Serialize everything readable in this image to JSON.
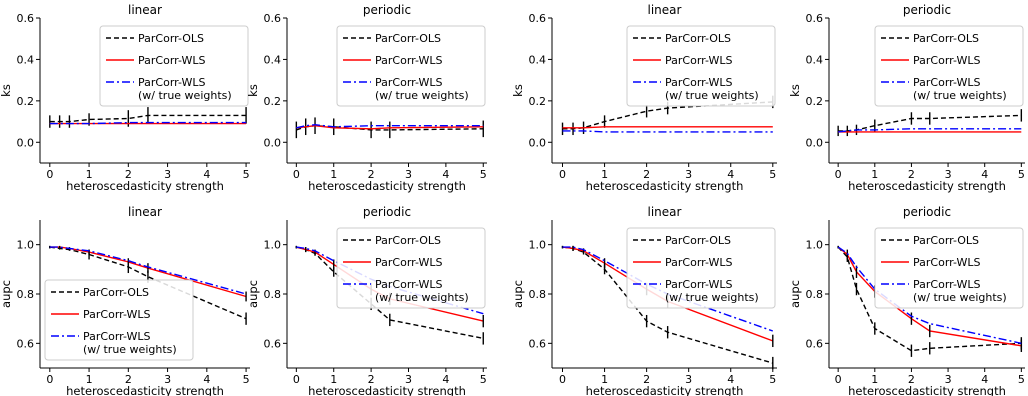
{
  "figure": {
    "series_styles": [
      {
        "name": "ParCorr-OLS",
        "line1": "ParCorr-OLS",
        "line2": "",
        "color": "#000000",
        "dash": "dashed"
      },
      {
        "name": "ParCorr-WLS",
        "line1": "ParCorr-WLS",
        "line2": "",
        "color": "#ff0000",
        "dash": "solid"
      },
      {
        "name": "ParCorr-WLS (w/ true weights)",
        "line1": "ParCorr-WLS",
        "line2": "(w/ true weights)",
        "color": "#0000ff",
        "dash": "dashdot"
      }
    ]
  },
  "chart_data": [
    {
      "type": "line",
      "title": "linear",
      "xlabel": "heteroscedasticity strength",
      "ylabel": "ks",
      "x": [
        0,
        0.25,
        0.5,
        1,
        2,
        2.5,
        5
      ],
      "xlim": [
        -0.25,
        5.1
      ],
      "ylim": [
        -0.1,
        0.6
      ],
      "xticks": [
        "0",
        "1",
        "2",
        "3",
        "4",
        "5"
      ],
      "yticks": [
        "0.0",
        "0.2",
        "0.4",
        "0.6"
      ],
      "legend": "top-right",
      "series": [
        {
          "name": "ParCorr-OLS",
          "values": [
            0.1,
            0.1,
            0.1,
            0.11,
            0.115,
            0.13,
            0.13
          ],
          "err": [
            0.03,
            0.03,
            0.03,
            0.03,
            0.04,
            0.04,
            0.04
          ]
        },
        {
          "name": "ParCorr-WLS",
          "values": [
            0.09,
            0.09,
            0.09,
            0.09,
            0.09,
            0.09,
            0.09
          ]
        },
        {
          "name": "ParCorr-WLS (w/ true weights)",
          "values": [
            0.09,
            0.09,
            0.09,
            0.09,
            0.095,
            0.095,
            0.095
          ]
        }
      ]
    },
    {
      "type": "line",
      "title": "periodic",
      "xlabel": "heteroscedasticity strength",
      "ylabel": "ks",
      "x": [
        0,
        0.25,
        0.5,
        1,
        2,
        2.5,
        5
      ],
      "xlim": [
        -0.25,
        5.1
      ],
      "ylim": [
        -0.1,
        0.6
      ],
      "xticks": [
        "0",
        "1",
        "2",
        "3",
        "4",
        "5"
      ],
      "yticks": [
        "0.0",
        "0.2",
        "0.4",
        "0.6"
      ],
      "legend": "top-right",
      "series": [
        {
          "name": "ParCorr-OLS",
          "values": [
            0.06,
            0.075,
            0.08,
            0.075,
            0.06,
            0.06,
            0.065
          ],
          "err": [
            0.04,
            0.04,
            0.04,
            0.04,
            0.04,
            0.04,
            0.04
          ]
        },
        {
          "name": "ParCorr-WLS",
          "values": [
            0.07,
            0.075,
            0.08,
            0.07,
            0.065,
            0.07,
            0.075
          ]
        },
        {
          "name": "ParCorr-WLS (w/ true weights)",
          "values": [
            0.07,
            0.08,
            0.085,
            0.075,
            0.08,
            0.08,
            0.08
          ]
        }
      ]
    },
    {
      "type": "line",
      "title": "linear",
      "xlabel": "heteroscedasticity strength",
      "ylabel": "ks",
      "x": [
        0,
        0.25,
        0.5,
        1,
        2,
        2.5,
        5
      ],
      "xlim": [
        -0.25,
        5.1
      ],
      "ylim": [
        -0.1,
        0.6
      ],
      "xticks": [
        "0",
        "1",
        "2",
        "3",
        "4",
        "5"
      ],
      "yticks": [
        "0.0",
        "0.2",
        "0.4",
        "0.6"
      ],
      "legend": "top-right",
      "series": [
        {
          "name": "ParCorr-OLS",
          "values": [
            0.065,
            0.065,
            0.07,
            0.1,
            0.15,
            0.165,
            0.195
          ],
          "err": [
            0.03,
            0.03,
            0.03,
            0.03,
            0.03,
            0.03,
            0.03
          ]
        },
        {
          "name": "ParCorr-WLS",
          "values": [
            0.07,
            0.07,
            0.07,
            0.075,
            0.075,
            0.075,
            0.075
          ]
        },
        {
          "name": "ParCorr-WLS (w/ true weights)",
          "values": [
            0.055,
            0.055,
            0.055,
            0.05,
            0.05,
            0.05,
            0.05
          ]
        }
      ]
    },
    {
      "type": "line",
      "title": "periodic",
      "xlabel": "heteroscedasticity strength",
      "ylabel": "ks",
      "x": [
        0,
        0.25,
        0.5,
        1,
        2,
        2.5,
        5
      ],
      "xlim": [
        -0.25,
        5.1
      ],
      "ylim": [
        -0.1,
        0.6
      ],
      "xticks": [
        "0",
        "1",
        "2",
        "3",
        "4",
        "5"
      ],
      "yticks": [
        "0.0",
        "0.2",
        "0.4",
        "0.6"
      ],
      "legend": "top-right",
      "series": [
        {
          "name": "ParCorr-OLS",
          "values": [
            0.055,
            0.055,
            0.06,
            0.08,
            0.115,
            0.115,
            0.13
          ],
          "err": [
            0.025,
            0.025,
            0.025,
            0.03,
            0.03,
            0.03,
            0.03
          ]
        },
        {
          "name": "ParCorr-WLS",
          "values": [
            0.05,
            0.05,
            0.05,
            0.05,
            0.05,
            0.05,
            0.05
          ]
        },
        {
          "name": "ParCorr-WLS (w/ true weights)",
          "values": [
            0.05,
            0.055,
            0.06,
            0.06,
            0.065,
            0.065,
            0.065
          ]
        }
      ]
    },
    {
      "type": "line",
      "title": "linear",
      "xlabel": "heteroscedasticity strength",
      "ylabel": "aupc",
      "x": [
        0,
        0.25,
        0.5,
        1,
        2,
        2.5,
        5
      ],
      "xlim": [
        -0.25,
        5.1
      ],
      "ylim": [
        0.5,
        1.1
      ],
      "xticks": [
        "0",
        "1",
        "2",
        "3",
        "4",
        "5"
      ],
      "yticks": [
        "0.6",
        "0.8",
        "1.0"
      ],
      "legend": "lower-left",
      "series": [
        {
          "name": "ParCorr-OLS",
          "values": [
            0.99,
            0.985,
            0.98,
            0.96,
            0.91,
            0.87,
            0.7
          ],
          "err": [
            0.005,
            0.005,
            0.005,
            0.02,
            0.025,
            0.025,
            0.025
          ]
        },
        {
          "name": "ParCorr-WLS",
          "values": [
            0.99,
            0.99,
            0.985,
            0.97,
            0.93,
            0.905,
            0.79
          ],
          "err": [
            0.005,
            0.005,
            0.005,
            0.01,
            0.015,
            0.02,
            0.02
          ]
        },
        {
          "name": "ParCorr-WLS (w/ true weights)",
          "values": [
            0.99,
            0.99,
            0.985,
            0.975,
            0.935,
            0.91,
            0.8
          ]
        }
      ]
    },
    {
      "type": "line",
      "title": "periodic",
      "xlabel": "heteroscedasticity strength",
      "ylabel": "aupc",
      "x": [
        0,
        0.25,
        0.5,
        1,
        2,
        2.5,
        5
      ],
      "xlim": [
        -0.25,
        5.1
      ],
      "ylim": [
        0.5,
        1.1
      ],
      "xticks": [
        "0",
        "1",
        "2",
        "3",
        "4",
        "5"
      ],
      "yticks": [
        "0.6",
        "0.8",
        "1.0"
      ],
      "legend": "top-right",
      "series": [
        {
          "name": "ParCorr-OLS",
          "values": [
            0.99,
            0.98,
            0.965,
            0.89,
            0.76,
            0.695,
            0.62
          ],
          "err": [
            0.005,
            0.01,
            0.01,
            0.02,
            0.025,
            0.025,
            0.025
          ]
        },
        {
          "name": "ParCorr-WLS",
          "values": [
            0.99,
            0.98,
            0.97,
            0.92,
            0.82,
            0.78,
            0.69
          ],
          "err": [
            0.005,
            0.01,
            0.01,
            0.02,
            0.025,
            0.025,
            0.025
          ]
        },
        {
          "name": "ParCorr-WLS (w/ true weights)",
          "values": [
            0.99,
            0.985,
            0.975,
            0.935,
            0.86,
            0.83,
            0.72
          ]
        }
      ]
    },
    {
      "type": "line",
      "title": "linear",
      "xlabel": "heteroscedasticity strength",
      "ylabel": "aupc",
      "x": [
        0,
        0.25,
        0.5,
        1,
        2,
        2.5,
        5
      ],
      "xlim": [
        -0.25,
        5.1
      ],
      "ylim": [
        0.5,
        1.1
      ],
      "xticks": [
        "0",
        "1",
        "2",
        "3",
        "4",
        "5"
      ],
      "yticks": [
        "0.6",
        "0.8",
        "1.0"
      ],
      "legend": "top-right",
      "series": [
        {
          "name": "ParCorr-OLS",
          "values": [
            0.99,
            0.985,
            0.97,
            0.9,
            0.69,
            0.645,
            0.52
          ],
          "err": [
            0.005,
            0.01,
            0.01,
            0.02,
            0.025,
            0.025,
            0.025
          ]
        },
        {
          "name": "ParCorr-WLS",
          "values": [
            0.99,
            0.985,
            0.975,
            0.925,
            0.82,
            0.77,
            0.61
          ],
          "err": [
            0.005,
            0.01,
            0.01,
            0.02,
            0.025,
            0.025,
            0.025
          ]
        },
        {
          "name": "ParCorr-WLS (w/ true weights)",
          "values": [
            0.99,
            0.99,
            0.98,
            0.935,
            0.84,
            0.8,
            0.65
          ]
        }
      ]
    },
    {
      "type": "line",
      "title": "periodic",
      "xlabel": "heteroscedasticity strength",
      "ylabel": "aupc",
      "x": [
        0,
        0.25,
        0.5,
        1,
        2,
        2.5,
        5
      ],
      "xlim": [
        -0.25,
        5.1
      ],
      "ylim": [
        0.5,
        1.1
      ],
      "xticks": [
        "0",
        "1",
        "2",
        "3",
        "4",
        "5"
      ],
      "yticks": [
        "0.6",
        "0.8",
        "1.0"
      ],
      "legend": "top-right",
      "series": [
        {
          "name": "ParCorr-OLS",
          "values": [
            0.99,
            0.95,
            0.82,
            0.66,
            0.57,
            0.58,
            0.6
          ],
          "err": [
            0.005,
            0.02,
            0.025,
            0.025,
            0.025,
            0.025,
            0.025
          ]
        },
        {
          "name": "ParCorr-WLS",
          "values": [
            0.99,
            0.96,
            0.89,
            0.81,
            0.7,
            0.65,
            0.59
          ],
          "err": [
            0.005,
            0.02,
            0.025,
            0.025,
            0.025,
            0.025,
            0.025
          ]
        },
        {
          "name": "ParCorr-WLS (w/ true weights)",
          "values": [
            0.99,
            0.965,
            0.91,
            0.82,
            0.71,
            0.68,
            0.6
          ]
        }
      ]
    }
  ]
}
